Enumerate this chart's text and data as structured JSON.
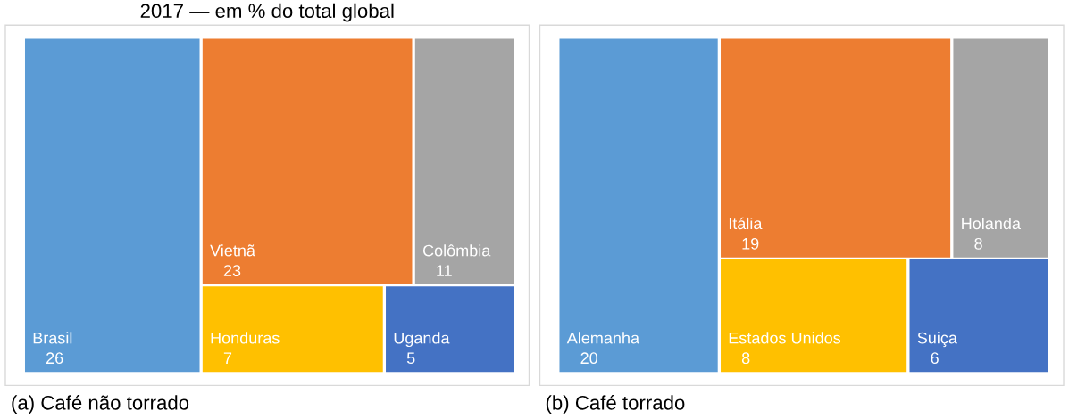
{
  "chart_data": [
    {
      "type": "other",
      "title": "2017 — em % do total global",
      "xlabel": "(a) Café não torrado",
      "categories": [
        "Brasil",
        "Vietnã",
        "Colômbia",
        "Honduras",
        "Uganda"
      ],
      "values": [
        26,
        23,
        11,
        7,
        5
      ],
      "colors": [
        "#5b9bd5",
        "#ed7d31",
        "#a5a5a5",
        "#ffc000",
        "#4472c4"
      ],
      "data_labels": true
    },
    {
      "type": "other",
      "xlabel": "(b) Café torrado",
      "categories": [
        "Alemanha",
        "Itália",
        "Holanda",
        "Estados Unidos",
        "Suiça"
      ],
      "values": [
        20,
        19,
        8,
        8,
        6
      ],
      "colors": [
        "#5b9bd5",
        "#ed7d31",
        "#a5a5a5",
        "#ffc000",
        "#4472c4"
      ],
      "data_labels": true
    }
  ]
}
